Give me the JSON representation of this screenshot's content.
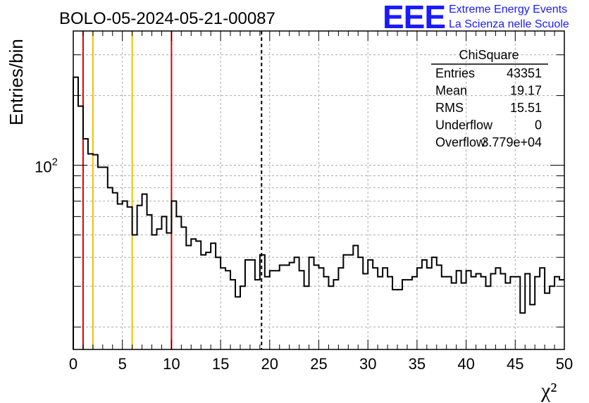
{
  "header": {
    "run_title": "BOLO-05-2024-05-21-00087",
    "logo_letters": "EEE",
    "logo_line1": "Extreme Energy Events",
    "logo_line2": "La Scienza nelle Scuole"
  },
  "stats_box": {
    "name": "ChiSquare",
    "rows": [
      {
        "label": "Entries",
        "value": "43351"
      },
      {
        "label": "Mean",
        "value": "19.17"
      },
      {
        "label": "RMS",
        "value": "15.51"
      },
      {
        "label": "Underflow",
        "value": "0"
      },
      {
        "label": "Overflow",
        "value": "3.779e+04"
      }
    ]
  },
  "colors": {
    "histogram": "#000000",
    "red_line": "#dd0000",
    "yellow_line": "#f0c000",
    "mean_line": "#000000",
    "grid": "#aaaaaa",
    "logo": "#1a1aff"
  },
  "chart_data": {
    "type": "histogram",
    "title": "BOLO-05-2024-05-21-00087",
    "xlabel": "χ²",
    "ylabel": "Entries/bin",
    "xlim": [
      0,
      50
    ],
    "ylim": [
      16,
      380
    ],
    "y_scale": "log",
    "grid": true,
    "x_ticks": [
      0,
      5,
      10,
      15,
      20,
      25,
      30,
      35,
      40,
      45,
      50
    ],
    "x_tick_labels": [
      "0",
      "5",
      "10",
      "15",
      "20",
      "25",
      "30",
      "35",
      "40",
      "45",
      "50"
    ],
    "y_major_ticks": [
      100
    ],
    "y_major_labels": [
      "10"
    ],
    "y_major_label_exp": "2",
    "y_minor_ticks": [
      20,
      30,
      40,
      50,
      60,
      70,
      80,
      90,
      200,
      300
    ],
    "bin_width": 0.5,
    "bin_start": 0,
    "values": [
      240,
      180,
      130,
      112,
      111,
      98,
      98,
      80,
      76,
      68,
      70,
      66,
      50,
      67,
      75,
      61,
      50,
      53,
      60,
      51,
      70,
      60,
      54,
      45,
      48,
      47,
      41,
      42,
      46,
      40,
      36,
      35,
      32,
      27,
      30,
      39,
      39,
      32,
      41,
      33,
      35,
      35,
      37,
      37,
      38,
      40,
      35,
      30,
      40,
      37,
      36,
      33,
      30,
      32,
      36,
      41,
      41,
      45,
      40,
      34,
      39,
      36,
      33,
      36,
      33,
      29,
      29,
      32,
      32,
      33,
      36,
      39,
      36,
      40,
      37,
      33,
      33,
      31,
      35,
      31,
      35,
      33,
      34,
      33,
      30,
      34,
      36,
      34,
      31,
      33,
      33,
      23,
      34,
      25,
      33,
      36,
      28,
      30,
      33,
      32
    ],
    "vertical_lines": [
      {
        "x": 1,
        "color": "red_line",
        "style": "solid"
      },
      {
        "x": 2,
        "color": "yellow_line",
        "style": "solid"
      },
      {
        "x": 6,
        "color": "yellow_line",
        "style": "solid"
      },
      {
        "x": 10,
        "color": "red_line",
        "style": "solid"
      },
      {
        "x": 19.17,
        "color": "mean_line",
        "style": "dashed"
      }
    ]
  }
}
